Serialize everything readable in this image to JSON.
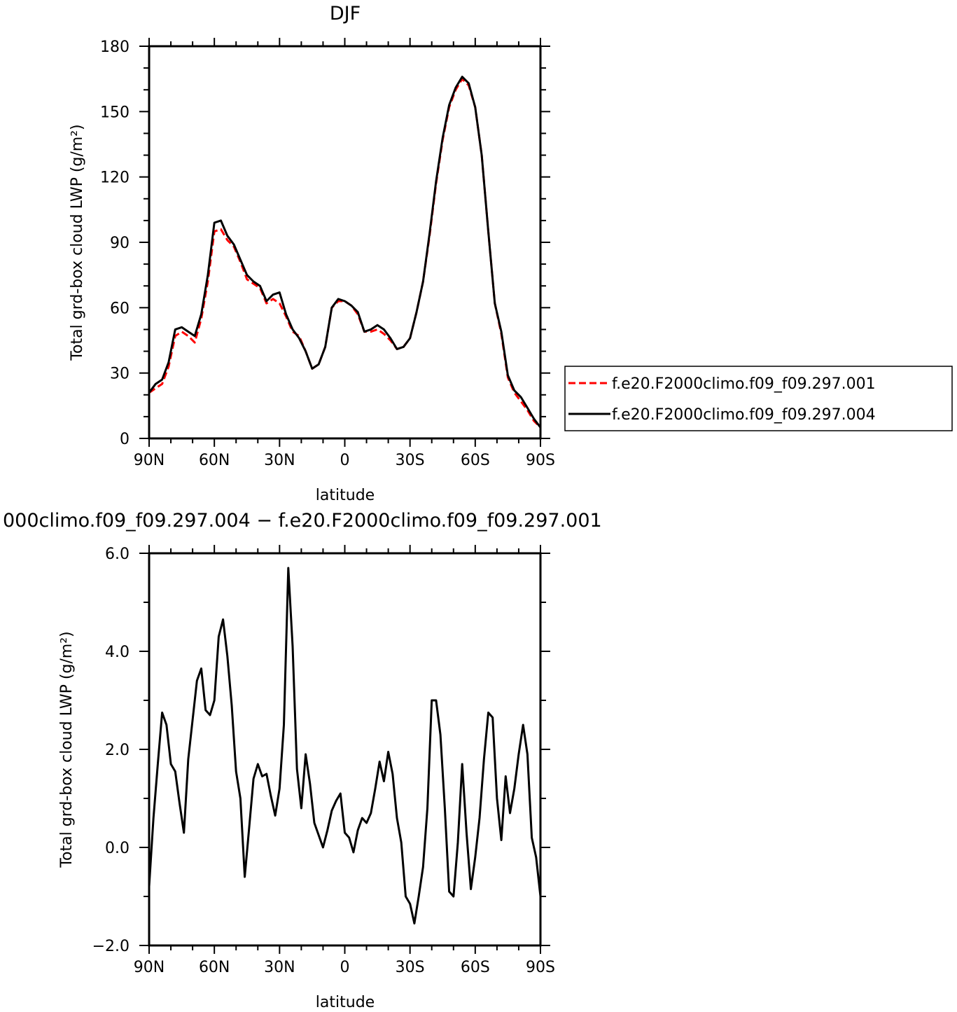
{
  "chart_data": [
    {
      "type": "line",
      "title": "DJF",
      "xlabel": "latitude",
      "ylabel": "Total grd-box cloud LWP (g/m²)",
      "x_ticks": [
        "90N",
        "60N",
        "30N",
        "0",
        "30S",
        "60S",
        "90S"
      ],
      "y_ticks": [
        "0",
        "30",
        "60",
        "90",
        "120",
        "150",
        "180"
      ],
      "xlim": [
        90,
        -90
      ],
      "ylim": [
        0,
        180
      ],
      "legend_position": "right",
      "series": [
        {
          "name": "f.e20.F2000climo.f09_f09.297.001",
          "color": "#ff0000",
          "dash": "dashed",
          "x": [
            90,
            87,
            84,
            81,
            78,
            75,
            72,
            69,
            66,
            63,
            60,
            57,
            54,
            51,
            48,
            45,
            42,
            39,
            36,
            33,
            30,
            27,
            24,
            21,
            18,
            15,
            12,
            9,
            6,
            3,
            0,
            -3,
            -6,
            -9,
            -12,
            -15,
            -18,
            -21,
            -24,
            -27,
            -30,
            -33,
            -36,
            -39,
            -42,
            -45,
            -48,
            -51,
            -54,
            -57,
            -60,
            -63,
            -66,
            -69,
            -72,
            -75,
            -78,
            -81,
            -84,
            -87,
            -90
          ],
          "y": [
            21,
            23,
            25,
            33,
            47,
            49,
            47,
            44,
            55,
            72,
            95,
            96,
            91,
            88,
            81,
            73,
            71,
            69,
            62,
            64,
            62,
            56,
            49,
            47,
            40,
            32,
            34,
            42,
            60,
            63,
            63,
            61,
            57,
            49,
            49,
            50,
            48,
            45,
            41,
            42,
            46,
            58,
            72,
            93,
            117,
            137,
            152,
            160,
            165,
            162,
            152,
            130,
            95,
            62,
            48,
            28,
            21,
            17,
            13,
            8,
            5
          ]
        },
        {
          "name": "f.e20.F2000climo.f09_f09.297.004",
          "color": "#000000",
          "dash": "solid",
          "x": [
            90,
            87,
            84,
            81,
            78,
            75,
            72,
            69,
            66,
            63,
            60,
            57,
            54,
            51,
            48,
            45,
            42,
            39,
            36,
            33,
            30,
            27,
            24,
            21,
            18,
            15,
            12,
            9,
            6,
            3,
            0,
            -3,
            -6,
            -9,
            -12,
            -15,
            -18,
            -21,
            -24,
            -27,
            -30,
            -33,
            -36,
            -39,
            -42,
            -45,
            -48,
            -51,
            -54,
            -57,
            -60,
            -63,
            -66,
            -69,
            -72,
            -75,
            -78,
            -81,
            -84,
            -87,
            -90
          ],
          "y": [
            21,
            25,
            27,
            35,
            50,
            51,
            49,
            47,
            57,
            75,
            99,
            100,
            93,
            89,
            82,
            75,
            72,
            70,
            63,
            66,
            67,
            57,
            50,
            46,
            40,
            32,
            34,
            42,
            60,
            64,
            63,
            61,
            58,
            49,
            50,
            52,
            50,
            46,
            41,
            42,
            46,
            58,
            72,
            94,
            118,
            138,
            153,
            161,
            166,
            163,
            152,
            130,
            95,
            62,
            49,
            29,
            22,
            19,
            14,
            9,
            5
          ]
        }
      ]
    },
    {
      "type": "line",
      "title": "000climo.f09_f09.297.004 − f.e20.F2000climo.f09_f09.297.001",
      "xlabel": "latitude",
      "ylabel": "Total grd-box cloud LWP (g/m²)",
      "x_ticks": [
        "90N",
        "60N",
        "30N",
        "0",
        "30S",
        "60S",
        "90S"
      ],
      "y_ticks": [
        "−2.0",
        "0.0",
        "2.0",
        "4.0",
        "6.0"
      ],
      "xlim": [
        90,
        -90
      ],
      "ylim": [
        -2,
        6
      ],
      "series": [
        {
          "color": "#000000",
          "dash": "solid",
          "x": [
            90,
            88,
            86,
            84,
            82,
            80,
            78,
            76,
            74,
            72,
            70,
            68,
            66,
            64,
            62,
            60,
            58,
            56,
            54,
            52,
            50,
            48,
            46,
            44,
            42,
            40,
            38,
            36,
            34,
            32,
            30,
            28,
            26,
            24,
            22,
            20,
            18,
            16,
            14,
            12,
            10,
            8,
            6,
            4,
            2,
            0,
            -2,
            -4,
            -6,
            -8,
            -10,
            -12,
            -14,
            -16,
            -18,
            -20,
            -22,
            -24,
            -26,
            -28,
            -30,
            -32,
            -34,
            -36,
            -38,
            -40,
            -42,
            -44,
            -46,
            -48,
            -50,
            -52,
            -54,
            -56,
            -58,
            -60,
            -62,
            -64,
            -66,
            -68,
            -70,
            -72,
            -74,
            -76,
            -78,
            -80,
            -82,
            -84,
            -86,
            -88,
            -90
          ],
          "y": [
            -0.8,
            0.6,
            1.7,
            2.75,
            2.5,
            1.7,
            1.55,
            0.9,
            0.3,
            1.8,
            2.6,
            3.4,
            3.65,
            2.8,
            2.7,
            3.0,
            4.3,
            4.65,
            3.9,
            2.9,
            1.55,
            1.0,
            -0.6,
            0.4,
            1.4,
            1.7,
            1.45,
            1.5,
            1.05,
            0.65,
            1.2,
            2.5,
            5.7,
            4.1,
            1.6,
            0.8,
            1.9,
            1.3,
            0.5,
            0.25,
            0.0,
            0.35,
            0.75,
            0.95,
            1.1,
            0.3,
            0.2,
            -0.1,
            0.35,
            0.6,
            0.5,
            0.7,
            1.2,
            1.75,
            1.35,
            1.95,
            1.5,
            0.6,
            0.1,
            -1.0,
            -1.15,
            -1.55,
            -1.0,
            -0.4,
            0.8,
            3.0,
            3.0,
            2.3,
            0.8,
            -0.9,
            -1.0,
            0.1,
            1.7,
            0.3,
            -0.85,
            -0.2,
            0.6,
            1.8,
            2.75,
            2.65,
            1.0,
            0.15,
            1.45,
            0.7,
            1.2,
            1.9,
            2.5,
            1.9,
            0.2,
            -0.2,
            -1.0
          ]
        }
      ]
    }
  ]
}
